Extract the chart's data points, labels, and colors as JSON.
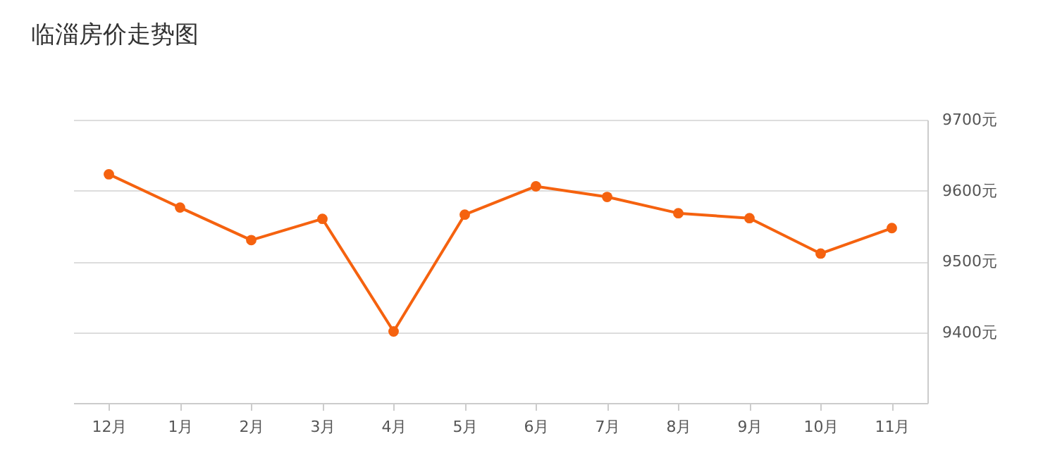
{
  "chart_data": {
    "type": "line",
    "title": "临淄房价走势图",
    "categories": [
      "12月",
      "1月",
      "2月",
      "3月",
      "4月",
      "5月",
      "6月",
      "7月",
      "8月",
      "9月",
      "10月",
      "11月"
    ],
    "series": [
      {
        "color": "#f5620f",
        "values": [
          9623,
          9576,
          9530,
          9560,
          9401,
          9566,
          9606,
          9591,
          9568,
          9561,
          9511,
          9547
        ]
      }
    ],
    "ylim": [
      9300,
      9700
    ],
    "yticks": [
      {
        "value": 9400,
        "label": "9400元"
      },
      {
        "value": 9500,
        "label": "9500元"
      },
      {
        "value": 9600,
        "label": "9600元"
      },
      {
        "value": 9700,
        "label": "9700元"
      }
    ],
    "grid": "y",
    "marker": "circle",
    "line_style": "solid"
  }
}
